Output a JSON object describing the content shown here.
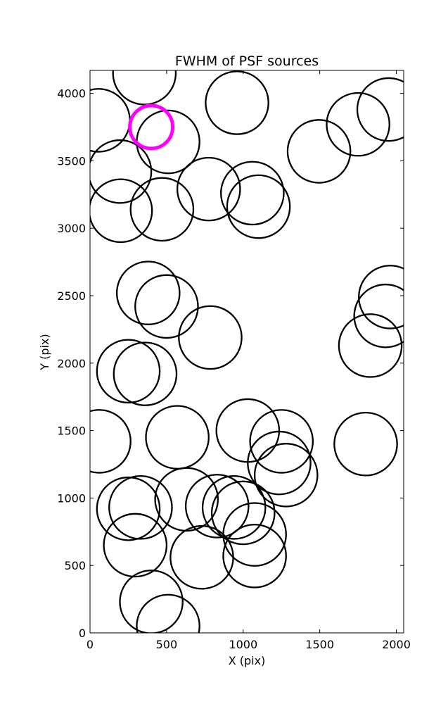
{
  "chart_data": {
    "type": "scatter",
    "title": "FWHM of PSF sources",
    "xlabel": "X (pix)",
    "ylabel": "Y (pix)",
    "xlim": [
      0,
      2048
    ],
    "ylim": [
      0,
      4170
    ],
    "xticks": [
      0,
      500,
      1000,
      1500,
      2000
    ],
    "yticks": [
      0,
      500,
      1000,
      1500,
      2000,
      2500,
      3000,
      3500,
      4000
    ],
    "grid": false,
    "marker": "open circle",
    "default_color": "#000000",
    "highlight_color": "#ff00ff",
    "series": [
      {
        "points": [
          {
            "x": 355,
            "y": 4150,
            "r": 205
          },
          {
            "x": 55,
            "y": 3800,
            "r": 205
          },
          {
            "x": 510,
            "y": 3640,
            "r": 205
          },
          {
            "x": 960,
            "y": 3930,
            "r": 205
          },
          {
            "x": 1750,
            "y": 3770,
            "r": 205
          },
          {
            "x": 1950,
            "y": 3880,
            "r": 205
          },
          {
            "x": 1495,
            "y": 3570,
            "r": 205
          },
          {
            "x": 195,
            "y": 3420,
            "r": 205
          },
          {
            "x": 200,
            "y": 3130,
            "r": 205
          },
          {
            "x": 470,
            "y": 3140,
            "r": 205
          },
          {
            "x": 775,
            "y": 3290,
            "r": 205
          },
          {
            "x": 1060,
            "y": 3260,
            "r": 205
          },
          {
            "x": 1100,
            "y": 3160,
            "r": 205
          },
          {
            "x": 380,
            "y": 2520,
            "r": 205
          },
          {
            "x": 500,
            "y": 2420,
            "r": 205
          },
          {
            "x": 785,
            "y": 2190,
            "r": 205
          },
          {
            "x": 1960,
            "y": 2490,
            "r": 205
          },
          {
            "x": 1930,
            "y": 2350,
            "r": 205
          },
          {
            "x": 1830,
            "y": 2130,
            "r": 205
          },
          {
            "x": 250,
            "y": 1940,
            "r": 205
          },
          {
            "x": 360,
            "y": 1920,
            "r": 205
          },
          {
            "x": 60,
            "y": 1420,
            "r": 205
          },
          {
            "x": 570,
            "y": 1450,
            "r": 205
          },
          {
            "x": 1030,
            "y": 1500,
            "r": 205
          },
          {
            "x": 1250,
            "y": 1420,
            "r": 205
          },
          {
            "x": 1235,
            "y": 1260,
            "r": 205
          },
          {
            "x": 1280,
            "y": 1170,
            "r": 205
          },
          {
            "x": 1800,
            "y": 1400,
            "r": 205
          },
          {
            "x": 250,
            "y": 920,
            "r": 205
          },
          {
            "x": 330,
            "y": 930,
            "r": 205
          },
          {
            "x": 630,
            "y": 990,
            "r": 205
          },
          {
            "x": 830,
            "y": 940,
            "r": 205
          },
          {
            "x": 940,
            "y": 930,
            "r": 205
          },
          {
            "x": 1000,
            "y": 890,
            "r": 205
          },
          {
            "x": 1075,
            "y": 730,
            "r": 205
          },
          {
            "x": 1075,
            "y": 570,
            "r": 205
          },
          {
            "x": 295,
            "y": 650,
            "r": 205
          },
          {
            "x": 730,
            "y": 560,
            "r": 205
          },
          {
            "x": 400,
            "y": 230,
            "r": 205
          },
          {
            "x": 510,
            "y": 50,
            "r": 205
          }
        ]
      },
      {
        "highlight": true,
        "points": [
          {
            "x": 400,
            "y": 3750,
            "r": 140
          }
        ]
      }
    ]
  }
}
